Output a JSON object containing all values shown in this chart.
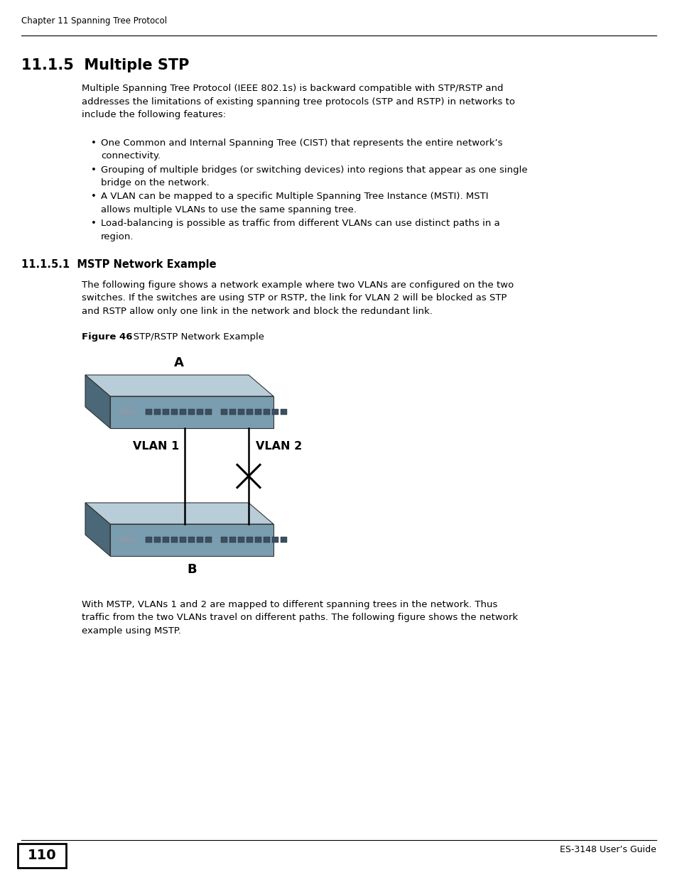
{
  "page_header": "Chapter 11 Spanning Tree Protocol",
  "page_number": "110",
  "page_footer": "ES-3148 User’s Guide",
  "section_title": "11.1.5  Multiple STP",
  "body_text": "Multiple Spanning Tree Protocol (IEEE 802.1s) is backward compatible with STP/RSTP and\naddresses the limitations of existing spanning tree protocols (STP and RSTP) in networks to\ninclude the following features:",
  "bullets": [
    "One Common and Internal Spanning Tree (CIST) that represents the entire network’s\nconnectivity.",
    "Grouping of multiple bridges (or switching devices) into regions that appear as one single\nbridge on the network.",
    "A VLAN can be mapped to a specific Multiple Spanning Tree Instance (MSTI). MSTI\nallows multiple VLANs to use the same spanning tree.",
    "Load-balancing is possible as traffic from different VLANs can use distinct paths in a\nregion."
  ],
  "subsection_title": "11.1.5.1  MSTP Network Example",
  "subsection_body": "The following figure shows a network example where two VLANs are configured on the two\nswitches. If the switches are using STP or RSTP, the link for VLAN 2 will be blocked as STP\nand RSTP allow only one link in the network and block the redundant link.",
  "figure_caption_bold": "Figure 46",
  "figure_caption_normal": "   STP/RSTP Network Example",
  "after_figure_text": "With MSTP, VLANs 1 and 2 are mapped to different spanning trees in the network. Thus\ntraffic from the two VLANs travel on different paths. The following figure shows the network\nexample using MSTP.",
  "label_A": "A",
  "label_B": "B",
  "label_VLAN1": "VLAN 1",
  "label_VLAN2": "VLAN 2",
  "sw_top_face": "#b8cdd8",
  "sw_front_face": "#7a9db0",
  "sw_left_face": "#4a6878",
  "sw_port_color": "#3a5060",
  "sw_led_color": "#8899aa"
}
